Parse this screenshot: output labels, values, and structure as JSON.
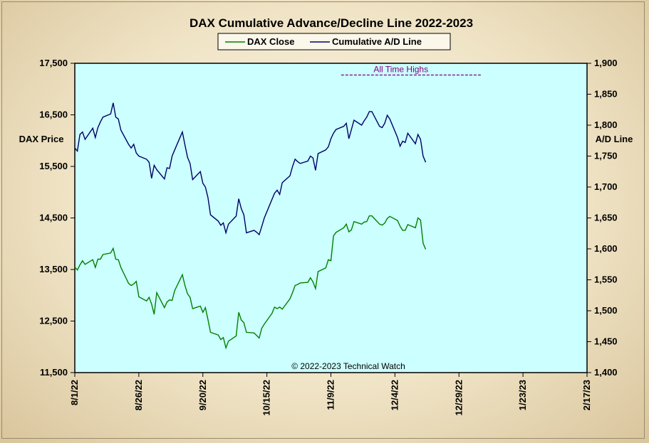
{
  "chart_data": {
    "type": "line",
    "title": "DAX  Cumulative  Advance/Decline  Line  2022-2023",
    "left_axis_label": "DAX Price",
    "right_axis_label": "A/D Line",
    "left_ylim": [
      11500,
      17500
    ],
    "right_ylim": [
      1400,
      1900
    ],
    "left_ticks": [
      "17,500",
      "16,500",
      "15,500",
      "14,500",
      "13,500",
      "12,500",
      "11,500"
    ],
    "left_tick_values": [
      17500,
      16500,
      15500,
      14500,
      13500,
      12500,
      11500
    ],
    "right_ticks": [
      "1,900",
      "1,850",
      "1,800",
      "1,750",
      "1,700",
      "1,650",
      "1,600",
      "1,550",
      "1,500",
      "1,450",
      "1,400"
    ],
    "right_tick_values": [
      1900,
      1850,
      1800,
      1750,
      1700,
      1650,
      1600,
      1550,
      1500,
      1450,
      1400
    ],
    "x_start": "2022-08-01",
    "x_end": "2023-02-17",
    "x_ticks": [
      "8/1/22",
      "8/26/22",
      "9/20/22",
      "10/15/22",
      "11/9/22",
      "12/4/22",
      "12/29/22",
      "1/23/23",
      "2/17/23"
    ],
    "x_tick_dates": [
      "2022-08-01",
      "2022-08-26",
      "2022-09-20",
      "2022-10-15",
      "2022-11-09",
      "2022-12-04",
      "2022-12-29",
      "2023-01-23",
      "2023-02-17"
    ],
    "legend": {
      "placement": "top-center",
      "dax_label": "DAX Close",
      "ad_label": "Cumulative A/D Line"
    },
    "annotation": {
      "text": "All Time Highs",
      "value": 1881,
      "x_from": "2022-11-13",
      "x_to": "2023-01-07"
    },
    "copyright": "© 2022-2023  Technical  Watch",
    "colors": {
      "background": "#ccffff",
      "dax": "#008000",
      "ad": "#000066",
      "annotation": "#800080"
    },
    "grid": false,
    "series": [
      {
        "name": "DAX Close",
        "axis": "left",
        "points": [
          [
            "2022-08-01",
            13550
          ],
          [
            "2022-08-02",
            13490
          ],
          [
            "2022-08-03",
            13590
          ],
          [
            "2022-08-04",
            13670
          ],
          [
            "2022-08-05",
            13600
          ],
          [
            "2022-08-08",
            13690
          ],
          [
            "2022-08-09",
            13540
          ],
          [
            "2022-08-10",
            13700
          ],
          [
            "2022-08-11",
            13700
          ],
          [
            "2022-08-12",
            13790
          ],
          [
            "2022-08-15",
            13820
          ],
          [
            "2022-08-16",
            13910
          ],
          [
            "2022-08-17",
            13700
          ],
          [
            "2022-08-18",
            13690
          ],
          [
            "2022-08-19",
            13540
          ],
          [
            "2022-08-22",
            13230
          ],
          [
            "2022-08-23",
            13190
          ],
          [
            "2022-08-24",
            13220
          ],
          [
            "2022-08-25",
            13270
          ],
          [
            "2022-08-26",
            12970
          ],
          [
            "2022-08-29",
            12890
          ],
          [
            "2022-08-30",
            12960
          ],
          [
            "2022-08-31",
            12830
          ],
          [
            "2022-09-01",
            12630
          ],
          [
            "2022-09-02",
            13050
          ],
          [
            "2022-09-05",
            12760
          ],
          [
            "2022-09-06",
            12870
          ],
          [
            "2022-09-07",
            12910
          ],
          [
            "2022-09-08",
            12900
          ],
          [
            "2022-09-09",
            13090
          ],
          [
            "2022-09-12",
            13400
          ],
          [
            "2022-09-13",
            13190
          ],
          [
            "2022-09-14",
            13030
          ],
          [
            "2022-09-15",
            12960
          ],
          [
            "2022-09-16",
            12740
          ],
          [
            "2022-09-19",
            12790
          ],
          [
            "2022-09-20",
            12670
          ],
          [
            "2022-09-21",
            12760
          ],
          [
            "2022-09-22",
            12530
          ],
          [
            "2022-09-23",
            12280
          ],
          [
            "2022-09-26",
            12230
          ],
          [
            "2022-09-27",
            12140
          ],
          [
            "2022-09-28",
            12180
          ],
          [
            "2022-09-29",
            11980
          ],
          [
            "2022-09-30",
            12110
          ],
          [
            "2022-10-03",
            12210
          ],
          [
            "2022-10-04",
            12670
          ],
          [
            "2022-10-05",
            12520
          ],
          [
            "2022-10-06",
            12470
          ],
          [
            "2022-10-07",
            12280
          ],
          [
            "2022-10-10",
            12270
          ],
          [
            "2022-10-11",
            12220
          ],
          [
            "2022-10-12",
            12170
          ],
          [
            "2022-10-13",
            12360
          ],
          [
            "2022-10-14",
            12440
          ],
          [
            "2022-10-17",
            12650
          ],
          [
            "2022-10-18",
            12770
          ],
          [
            "2022-10-19",
            12740
          ],
          [
            "2022-10-20",
            12770
          ],
          [
            "2022-10-21",
            12730
          ],
          [
            "2022-10-24",
            12930
          ],
          [
            "2022-10-25",
            13050
          ],
          [
            "2022-10-26",
            13190
          ],
          [
            "2022-10-27",
            13210
          ],
          [
            "2022-10-28",
            13240
          ],
          [
            "2022-10-31",
            13250
          ],
          [
            "2022-11-01",
            13340
          ],
          [
            "2022-11-02",
            13260
          ],
          [
            "2022-11-03",
            13130
          ],
          [
            "2022-11-04",
            13460
          ],
          [
            "2022-11-07",
            13530
          ],
          [
            "2022-11-08",
            13690
          ],
          [
            "2022-11-09",
            13670
          ],
          [
            "2022-11-10",
            14150
          ],
          [
            "2022-11-11",
            14220
          ],
          [
            "2022-11-14",
            14310
          ],
          [
            "2022-11-15",
            14380
          ],
          [
            "2022-11-16",
            14230
          ],
          [
            "2022-11-17",
            14270
          ],
          [
            "2022-11-18",
            14430
          ],
          [
            "2022-11-21",
            14380
          ],
          [
            "2022-11-22",
            14420
          ],
          [
            "2022-11-23",
            14430
          ],
          [
            "2022-11-24",
            14540
          ],
          [
            "2022-11-25",
            14540
          ],
          [
            "2022-11-28",
            14380
          ],
          [
            "2022-11-29",
            14360
          ],
          [
            "2022-11-30",
            14400
          ],
          [
            "2022-12-01",
            14490
          ],
          [
            "2022-12-02",
            14530
          ],
          [
            "2022-12-05",
            14450
          ],
          [
            "2022-12-06",
            14340
          ],
          [
            "2022-12-07",
            14260
          ],
          [
            "2022-12-08",
            14260
          ],
          [
            "2022-12-09",
            14370
          ],
          [
            "2022-12-12",
            14310
          ],
          [
            "2022-12-13",
            14500
          ],
          [
            "2022-12-14",
            14460
          ],
          [
            "2022-12-15",
            14010
          ],
          [
            "2022-12-16",
            13890
          ]
        ]
      },
      {
        "name": "Cumulative A/D Line",
        "axis": "right",
        "points": [
          [
            "2022-08-01",
            1763
          ],
          [
            "2022-08-02",
            1758
          ],
          [
            "2022-08-03",
            1785
          ],
          [
            "2022-08-04",
            1789
          ],
          [
            "2022-08-05",
            1777
          ],
          [
            "2022-08-08",
            1795
          ],
          [
            "2022-08-09",
            1780
          ],
          [
            "2022-08-10",
            1796
          ],
          [
            "2022-08-11",
            1805
          ],
          [
            "2022-08-12",
            1813
          ],
          [
            "2022-08-15",
            1818
          ],
          [
            "2022-08-16",
            1836
          ],
          [
            "2022-08-17",
            1813
          ],
          [
            "2022-08-18",
            1810
          ],
          [
            "2022-08-19",
            1792
          ],
          [
            "2022-08-22",
            1769
          ],
          [
            "2022-08-23",
            1763
          ],
          [
            "2022-08-24",
            1769
          ],
          [
            "2022-08-25",
            1755
          ],
          [
            "2022-08-26",
            1750
          ],
          [
            "2022-08-29",
            1745
          ],
          [
            "2022-08-30",
            1740
          ],
          [
            "2022-08-31",
            1714
          ],
          [
            "2022-09-01",
            1735
          ],
          [
            "2022-09-02",
            1728
          ],
          [
            "2022-09-05",
            1713
          ],
          [
            "2022-09-06",
            1731
          ],
          [
            "2022-09-07",
            1730
          ],
          [
            "2022-09-08",
            1750
          ],
          [
            "2022-09-09",
            1760
          ],
          [
            "2022-09-12",
            1789
          ],
          [
            "2022-09-13",
            1768
          ],
          [
            "2022-09-14",
            1748
          ],
          [
            "2022-09-15",
            1738
          ],
          [
            "2022-09-16",
            1712
          ],
          [
            "2022-09-19",
            1725
          ],
          [
            "2022-09-20",
            1706
          ],
          [
            "2022-09-21",
            1700
          ],
          [
            "2022-09-22",
            1683
          ],
          [
            "2022-09-23",
            1655
          ],
          [
            "2022-09-26",
            1645
          ],
          [
            "2022-09-27",
            1638
          ],
          [
            "2022-09-28",
            1642
          ],
          [
            "2022-09-29",
            1626
          ],
          [
            "2022-09-30",
            1640
          ],
          [
            "2022-10-03",
            1653
          ],
          [
            "2022-10-04",
            1681
          ],
          [
            "2022-10-05",
            1665
          ],
          [
            "2022-10-06",
            1655
          ],
          [
            "2022-10-07",
            1626
          ],
          [
            "2022-10-10",
            1630
          ],
          [
            "2022-10-11",
            1627
          ],
          [
            "2022-10-12",
            1623
          ],
          [
            "2022-10-13",
            1636
          ],
          [
            "2022-10-14",
            1650
          ],
          [
            "2022-10-17",
            1680
          ],
          [
            "2022-10-18",
            1690
          ],
          [
            "2022-10-19",
            1695
          ],
          [
            "2022-10-20",
            1688
          ],
          [
            "2022-10-21",
            1707
          ],
          [
            "2022-10-24",
            1718
          ],
          [
            "2022-10-25",
            1733
          ],
          [
            "2022-10-26",
            1745
          ],
          [
            "2022-10-27",
            1741
          ],
          [
            "2022-10-28",
            1738
          ],
          [
            "2022-10-31",
            1742
          ],
          [
            "2022-11-01",
            1750
          ],
          [
            "2022-11-02",
            1747
          ],
          [
            "2022-11-03",
            1727
          ],
          [
            "2022-11-04",
            1754
          ],
          [
            "2022-11-07",
            1760
          ],
          [
            "2022-11-08",
            1765
          ],
          [
            "2022-11-09",
            1778
          ],
          [
            "2022-11-10",
            1787
          ],
          [
            "2022-11-11",
            1793
          ],
          [
            "2022-11-14",
            1798
          ],
          [
            "2022-11-15",
            1803
          ],
          [
            "2022-11-16",
            1778
          ],
          [
            "2022-11-17",
            1793
          ],
          [
            "2022-11-18",
            1808
          ],
          [
            "2022-11-21",
            1800
          ],
          [
            "2022-11-22",
            1807
          ],
          [
            "2022-11-23",
            1813
          ],
          [
            "2022-11-24",
            1822
          ],
          [
            "2022-11-25",
            1822
          ],
          [
            "2022-11-28",
            1798
          ],
          [
            "2022-11-29",
            1796
          ],
          [
            "2022-11-30",
            1803
          ],
          [
            "2022-12-01",
            1816
          ],
          [
            "2022-12-02",
            1810
          ],
          [
            "2022-12-05",
            1780
          ],
          [
            "2022-12-06",
            1766
          ],
          [
            "2022-12-07",
            1774
          ],
          [
            "2022-12-08",
            1772
          ],
          [
            "2022-12-09",
            1787
          ],
          [
            "2022-12-12",
            1770
          ],
          [
            "2022-12-13",
            1785
          ],
          [
            "2022-12-14",
            1777
          ],
          [
            "2022-12-15",
            1750
          ],
          [
            "2022-12-16",
            1740
          ]
        ]
      }
    ]
  }
}
